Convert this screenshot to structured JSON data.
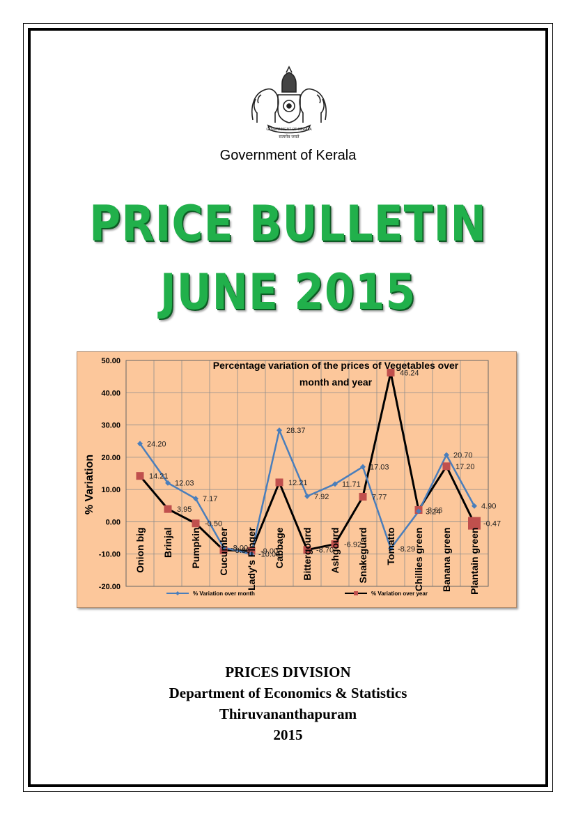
{
  "header": {
    "emblem_alt": "Kerala state emblem",
    "emblem_lettering": "GOVERNMENT OF KERALA",
    "government": "Government of Kerala"
  },
  "title": {
    "line1": "PRICE BULLETIN",
    "line2": "JUNE 2015"
  },
  "colors": {
    "title_green": "#21b04b",
    "chart_bg": "#fcc79b",
    "series_month": "#4a7ebb",
    "series_year_line": "#000000",
    "series_year_marker": "#c0504d"
  },
  "chart_data": {
    "type": "line",
    "title": "Percentage variation of the prices of Vegetables over month and year",
    "ylabel": "% Variation",
    "ylim": [
      -20,
      50
    ],
    "ytick_labels": [
      "50.00",
      "40.00",
      "30.00",
      "20.00",
      "10.00",
      "0.00",
      "-10.00",
      "-20.00"
    ],
    "yticks": [
      50,
      40,
      30,
      20,
      10,
      0,
      -10,
      -20
    ],
    "grid": true,
    "legend_position": "bottom",
    "categories": [
      "Onion big",
      "Brinjal",
      "Pumpkin",
      "Cucumber",
      "Lady's Finger",
      "Cabbage",
      "Bittergourd",
      "Ashgourd",
      "Snakeguard",
      "Tomatto",
      "Chillies green",
      "Banana green",
      "Plantain green"
    ],
    "series": [
      {
        "name": "% Variation over month",
        "values": [
          24.2,
          12.03,
          7.17,
          -8.0,
          -10.0,
          28.37,
          7.92,
          11.71,
          17.03,
          -8.29,
          3.24,
          20.7,
          4.9
        ],
        "labels": [
          "24.20",
          "12.03",
          "7.17",
          "-8.00",
          "-10.00",
          "28.37",
          "7.92",
          "11.71",
          "17.03",
          "-8.29",
          "3.24",
          "20.70",
          "4.90"
        ]
      },
      {
        "name": "% Variation over year",
        "values": [
          14.21,
          3.95,
          -0.5,
          -8.8,
          -9.0,
          12.21,
          -8.7,
          -6.92,
          7.77,
          46.24,
          3.66,
          17.2,
          -0.47
        ],
        "labels": [
          "14.21",
          "3.95",
          "-0.50",
          "-8.80",
          "-9.00",
          "12.21",
          "-8.70",
          "-6.92",
          "7.77",
          "46.24",
          "3.66",
          "17.20",
          "-0.47"
        ]
      }
    ]
  },
  "footer": {
    "division": "PRICES DIVISION",
    "department": "Department of Economics & Statistics",
    "city": "Thiruvananthapuram",
    "year": "2015"
  }
}
